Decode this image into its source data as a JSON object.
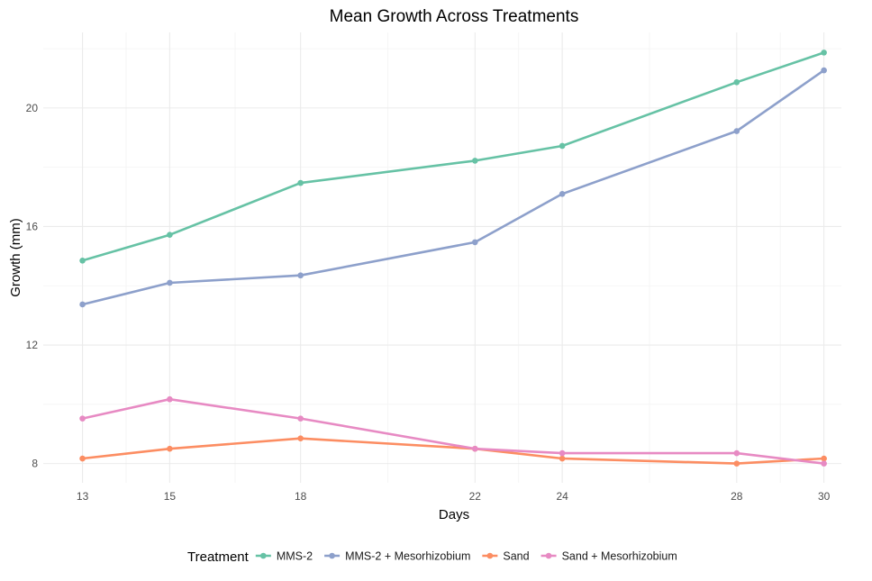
{
  "chart_data": {
    "type": "line",
    "title": "Mean Growth Across Treatments",
    "xlabel": "Days",
    "ylabel": "Growth (mm)",
    "x": [
      13,
      15,
      18,
      22,
      24,
      28,
      30
    ],
    "x_ticks": [
      13,
      15,
      18,
      22,
      24,
      28,
      30
    ],
    "y_ticks": [
      8,
      12,
      16,
      20
    ],
    "xlim": [
      12.1,
      30.4
    ],
    "ylim": [
      7.35,
      22.55
    ],
    "grid": true,
    "legend_title": "Treatment",
    "legend_position": "bottom",
    "series": [
      {
        "name": "MMS-2",
        "color": "#66c2a5",
        "values": [
          14.85,
          15.72,
          17.47,
          18.22,
          18.72,
          20.87,
          21.87
        ]
      },
      {
        "name": "MMS-2 + Mesorhizobium",
        "color": "#8da0cb",
        "values": [
          13.37,
          14.1,
          14.35,
          15.47,
          17.1,
          19.22,
          21.27
        ]
      },
      {
        "name": "Sand",
        "color": "#fc8d62",
        "values": [
          8.17,
          8.5,
          8.85,
          8.5,
          8.17,
          8.0,
          8.17
        ]
      },
      {
        "name": "Sand + Mesorhizobium",
        "color": "#e78ac3",
        "values": [
          9.52,
          10.17,
          9.52,
          8.5,
          8.35,
          8.35,
          8.0
        ]
      }
    ]
  }
}
